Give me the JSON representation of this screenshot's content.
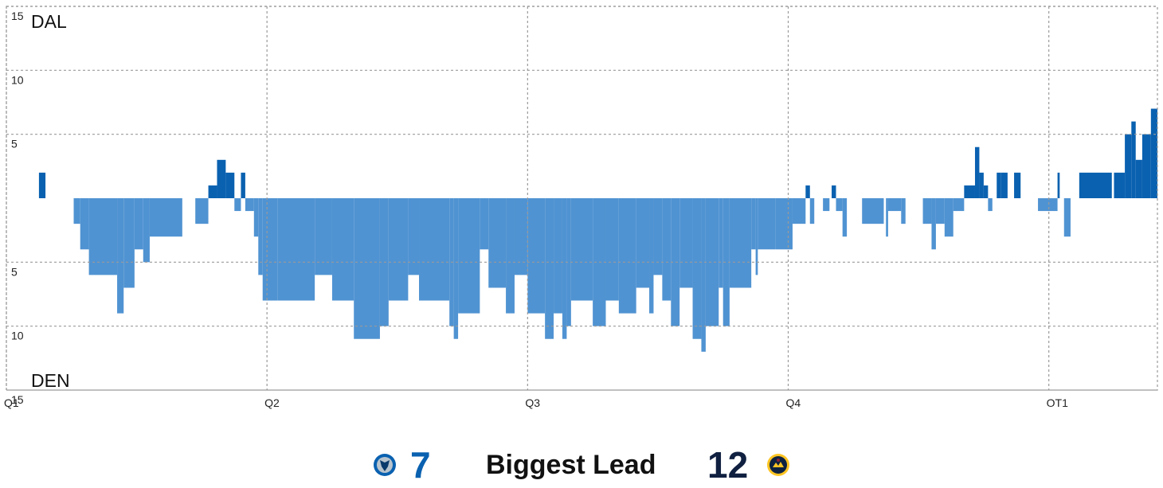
{
  "chart_data": {
    "type": "bar",
    "ylim": [
      -15,
      15
    ],
    "xlim": [
      0,
      53
    ],
    "y_ticks": [
      {
        "value": 15,
        "label": "15"
      },
      {
        "value": 10,
        "label": "10"
      },
      {
        "value": 5,
        "label": "5"
      },
      {
        "value": -5,
        "label": "5"
      },
      {
        "value": -10,
        "label": "10"
      },
      {
        "value": -15,
        "label": "15"
      }
    ],
    "x_ticks": [
      {
        "value": 0,
        "label": "Q1"
      },
      {
        "value": 12,
        "label": "Q2"
      },
      {
        "value": 24,
        "label": "Q3"
      },
      {
        "value": 36,
        "label": "Q4"
      },
      {
        "value": 48,
        "label": "OT1"
      }
    ],
    "teams": {
      "top": "DAL",
      "bottom": "DEN"
    },
    "grid": true,
    "colors": {
      "dal": "#0a61b0",
      "den": "#5093d2"
    },
    "segments": [
      [
        1.5,
        1.8,
        2
      ],
      [
        3.1,
        3.4,
        -2
      ],
      [
        3.4,
        3.8,
        -4
      ],
      [
        3.8,
        5.1,
        -6
      ],
      [
        5.1,
        5.4,
        -9
      ],
      [
        5.4,
        5.9,
        -7
      ],
      [
        5.9,
        6.3,
        -4
      ],
      [
        6.3,
        6.6,
        -5
      ],
      [
        6.6,
        8.1,
        -3
      ],
      [
        8.7,
        9.3,
        -2
      ],
      [
        9.3,
        9.7,
        1
      ],
      [
        9.7,
        10.1,
        3
      ],
      [
        10.1,
        10.5,
        2
      ],
      [
        10.5,
        10.8,
        -1
      ],
      [
        10.8,
        11.0,
        2
      ],
      [
        11.0,
        11.4,
        -1
      ],
      [
        11.4,
        11.6,
        -3
      ],
      [
        11.6,
        11.8,
        -6
      ],
      [
        11.8,
        12.5,
        -8
      ],
      [
        12.5,
        14.2,
        -8
      ],
      [
        14.2,
        15.0,
        -6
      ],
      [
        15.0,
        16.0,
        -8
      ],
      [
        16.0,
        17.2,
        -11
      ],
      [
        17.2,
        17.6,
        -10
      ],
      [
        17.6,
        18.5,
        -8
      ],
      [
        18.5,
        19.0,
        -6
      ],
      [
        19.0,
        20.4,
        -8
      ],
      [
        20.4,
        20.6,
        -10
      ],
      [
        20.6,
        20.8,
        -11
      ],
      [
        20.8,
        21.8,
        -9
      ],
      [
        21.8,
        22.2,
        -4
      ],
      [
        22.2,
        23.0,
        -7
      ],
      [
        23.0,
        23.4,
        -9
      ],
      [
        23.4,
        24.0,
        -6
      ],
      [
        24.0,
        24.8,
        -9
      ],
      [
        24.8,
        25.2,
        -11
      ],
      [
        25.2,
        25.6,
        -9
      ],
      [
        25.6,
        25.8,
        -11
      ],
      [
        25.8,
        26.0,
        -10
      ],
      [
        26.0,
        27.0,
        -8
      ],
      [
        27.0,
        27.6,
        -10
      ],
      [
        27.6,
        28.2,
        -8
      ],
      [
        28.2,
        29.0,
        -9
      ],
      [
        29.0,
        29.6,
        -7
      ],
      [
        29.6,
        29.8,
        -9
      ],
      [
        29.8,
        30.2,
        -6
      ],
      [
        30.2,
        30.6,
        -8
      ],
      [
        30.6,
        31.0,
        -10
      ],
      [
        31.0,
        31.6,
        -7
      ],
      [
        31.6,
        32.0,
        -11
      ],
      [
        32.0,
        32.2,
        -12
      ],
      [
        32.2,
        32.8,
        -10
      ],
      [
        32.8,
        33.0,
        -7
      ],
      [
        33.0,
        33.3,
        -10
      ],
      [
        33.3,
        34.3,
        -7
      ],
      [
        34.3,
        34.5,
        -4
      ],
      [
        34.5,
        34.6,
        -6
      ],
      [
        34.6,
        35.4,
        -4
      ],
      [
        35.4,
        36.2,
        -4
      ],
      [
        36.2,
        36.8,
        -2
      ],
      [
        36.8,
        37.0,
        1
      ],
      [
        37.0,
        37.2,
        -2
      ],
      [
        37.6,
        37.9,
        -1
      ],
      [
        38.0,
        38.2,
        1
      ],
      [
        38.2,
        38.5,
        -1
      ],
      [
        38.5,
        38.7,
        -3
      ],
      [
        39.4,
        40.4,
        -2
      ],
      [
        40.5,
        40.6,
        -3
      ],
      [
        40.6,
        41.2,
        -1
      ],
      [
        41.2,
        41.4,
        -2
      ],
      [
        42.2,
        42.6,
        -2
      ],
      [
        42.6,
        42.8,
        -4
      ],
      [
        42.8,
        43.2,
        -2
      ],
      [
        43.2,
        43.6,
        -3
      ],
      [
        43.6,
        44.1,
        -1
      ],
      [
        44.1,
        44.6,
        1
      ],
      [
        44.6,
        44.8,
        4
      ],
      [
        44.8,
        45.0,
        2
      ],
      [
        45.0,
        45.2,
        1
      ],
      [
        45.2,
        45.4,
        -1
      ],
      [
        45.6,
        45.8,
        2
      ],
      [
        45.8,
        46.1,
        2
      ],
      [
        46.4,
        46.7,
        2
      ],
      [
        47.5,
        48.4,
        -1
      ],
      [
        48.4,
        48.5,
        2
      ],
      [
        48.7,
        49.0,
        -3
      ],
      [
        49.4,
        50.9,
        2
      ],
      [
        51.0,
        51.5,
        2
      ],
      [
        51.5,
        51.8,
        5
      ],
      [
        51.8,
        52.0,
        6
      ],
      [
        52.0,
        52.3,
        3
      ],
      [
        52.3,
        52.7,
        5
      ],
      [
        52.7,
        53.0,
        7
      ]
    ]
  },
  "footer": {
    "dal_logo": "mavericks-logo",
    "den_logo": "nuggets-logo",
    "dal_value": "7",
    "label": "Biggest Lead",
    "den_value": "12",
    "dal_color": "#0a61b0",
    "den_color": "#102040"
  }
}
